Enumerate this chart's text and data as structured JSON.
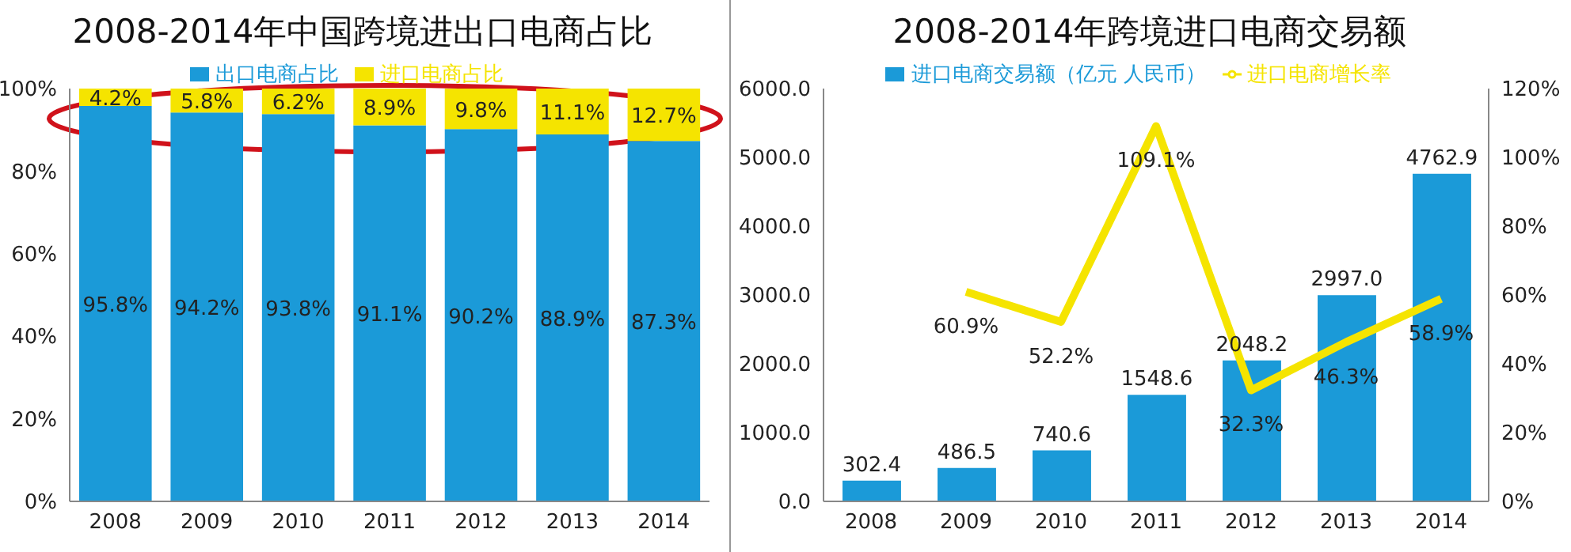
{
  "chart_data": [
    {
      "type": "bar",
      "title": "2008-2014年中国跨境进出口电商占比",
      "categories": [
        "2008",
        "2009",
        "2010",
        "2011",
        "2012",
        "2013",
        "2014"
      ],
      "stacked": true,
      "legend": "top",
      "ylim": [
        0,
        100
      ],
      "yticks": [
        {
          "value": 0,
          "label": "0%"
        },
        {
          "value": 20,
          "label": "20%"
        },
        {
          "value": 40,
          "label": "40%"
        },
        {
          "value": 60,
          "label": "60%"
        },
        {
          "value": 80,
          "label": "80%"
        },
        {
          "value": 100,
          "label": "100%"
        }
      ],
      "series": [
        {
          "name": "出口电商占比",
          "color": "#1b9ad8",
          "values": [
            95.8,
            94.2,
            93.8,
            91.1,
            90.2,
            88.9,
            87.3
          ],
          "value_labels": [
            "95.8%",
            "94.2%",
            "93.8%",
            "91.1%",
            "90.2%",
            "88.9%",
            "87.3%"
          ]
        },
        {
          "name": "进口电商占比",
          "color": "#f5e400",
          "values": [
            4.2,
            5.8,
            6.2,
            8.9,
            9.8,
            11.1,
            12.7
          ],
          "value_labels": [
            "4.2%",
            "5.8%",
            "6.2%",
            "8.9%",
            "9.8%",
            "11.1%",
            "12.7%"
          ]
        }
      ]
    },
    {
      "type": "bar",
      "title": "2008-2014年跨境进口电商交易额",
      "categories": [
        "2008",
        "2009",
        "2010",
        "2011",
        "2012",
        "2013",
        "2014"
      ],
      "legend": "top",
      "ylim": [
        0,
        6000
      ],
      "yticks": [
        {
          "value": 0,
          "label": "0.0"
        },
        {
          "value": 1000,
          "label": "1000.0"
        },
        {
          "value": 2000,
          "label": "2000.0"
        },
        {
          "value": 3000,
          "label": "3000.0"
        },
        {
          "value": 4000,
          "label": "4000.0"
        },
        {
          "value": 5000,
          "label": "5000.0"
        },
        {
          "value": 6000,
          "label": "6000.0"
        }
      ],
      "y2lim": [
        0,
        120
      ],
      "y2ticks": [
        {
          "value": 0,
          "label": "0%"
        },
        {
          "value": 20,
          "label": "20%"
        },
        {
          "value": 40,
          "label": "40%"
        },
        {
          "value": 60,
          "label": "60%"
        },
        {
          "value": 80,
          "label": "80%"
        },
        {
          "value": 100,
          "label": "100%"
        },
        {
          "value": 120,
          "label": "120%"
        }
      ],
      "marker": "none",
      "series": [
        {
          "name": "进口电商交易额（亿元 人民币）",
          "color": "#1b9ad8",
          "values": [
            302.4,
            486.5,
            740.6,
            1548.6,
            2048.2,
            2997.0,
            4762.9
          ],
          "value_labels": [
            "302.4",
            "486.5",
            "740.6",
            "1548.6",
            "2048.2",
            "2997.0",
            "4762.9"
          ]
        },
        {
          "name": "进口电商增长率",
          "type": "line",
          "axis": "y2",
          "color": "#f5e400",
          "values": [
            null,
            60.9,
            52.2,
            109.1,
            32.3,
            46.3,
            58.9
          ],
          "value_labels": [
            null,
            "60.9%",
            "52.2%",
            "109.1%",
            "32.3%",
            "46.3%",
            "58.9%"
          ]
        }
      ]
    }
  ]
}
